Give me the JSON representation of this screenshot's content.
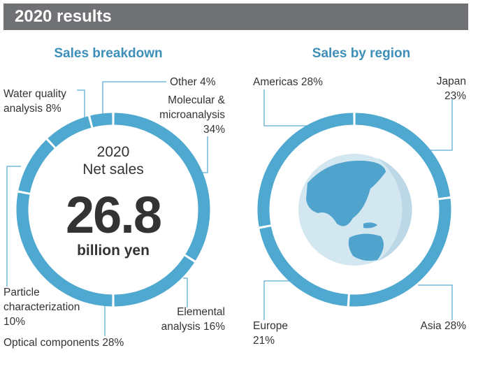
{
  "header": {
    "title": "2020 results"
  },
  "chart_data": [
    {
      "type": "donut",
      "title": "Sales breakdown",
      "categories": [
        "Molecular & microanalysis",
        "Elemental analysis",
        "Optical components",
        "Particle characterization",
        "Water quality analysis",
        "Other"
      ],
      "values": [
        34,
        16,
        28,
        10,
        8,
        4
      ],
      "value_labels": [
        "34%",
        "16%",
        "28%",
        "10%",
        "8%",
        "4%"
      ],
      "color": "#4ea8cf",
      "center": {
        "year": "2020",
        "caption": "Net sales",
        "value": 26.8,
        "unit": "billion yen"
      }
    },
    {
      "type": "donut",
      "title": "Sales by region",
      "categories": [
        "Japan",
        "Asia",
        "Europe",
        "Americas"
      ],
      "values": [
        23,
        28,
        21,
        28
      ],
      "value_labels": [
        "23%",
        "28%",
        "21%",
        "28%"
      ],
      "color": "#4ea8cf"
    }
  ]
}
